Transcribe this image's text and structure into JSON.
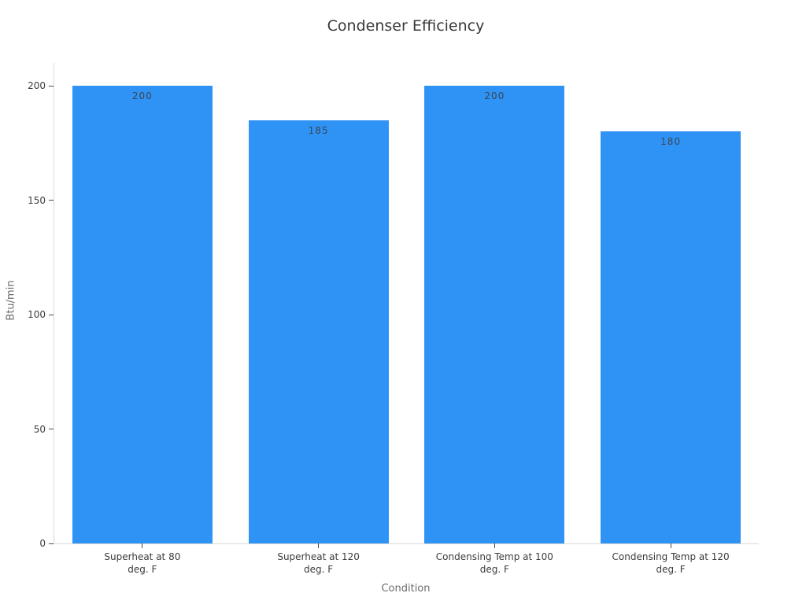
{
  "chart_data": {
    "type": "bar",
    "title": "Condenser Efficiency",
    "xlabel": "Condition",
    "ylabel": "Btu/min",
    "categories": [
      "Superheat at 80\ndeg. F",
      "Superheat at 120\ndeg. F",
      "Condensing Temp at 100\ndeg. F",
      "Condensing Temp at 120\ndeg. F"
    ],
    "values": [
      200,
      185,
      200,
      180
    ],
    "bar_labels": [
      "200",
      "185",
      "200",
      "180"
    ],
    "yticks": [
      0,
      50,
      100,
      150,
      200
    ],
    "ylim": [
      0,
      210
    ],
    "grid": false,
    "legend": "none",
    "colors": {
      "bar": "#2f93f6",
      "axis_line": "#d9d9d9",
      "tick_mark": "#4a4a4a",
      "tick_label": "#3b3b3b",
      "axis_title": "#6b6b6b",
      "title": "#3a3a3a",
      "bar_value_label": "#3b4552"
    }
  }
}
